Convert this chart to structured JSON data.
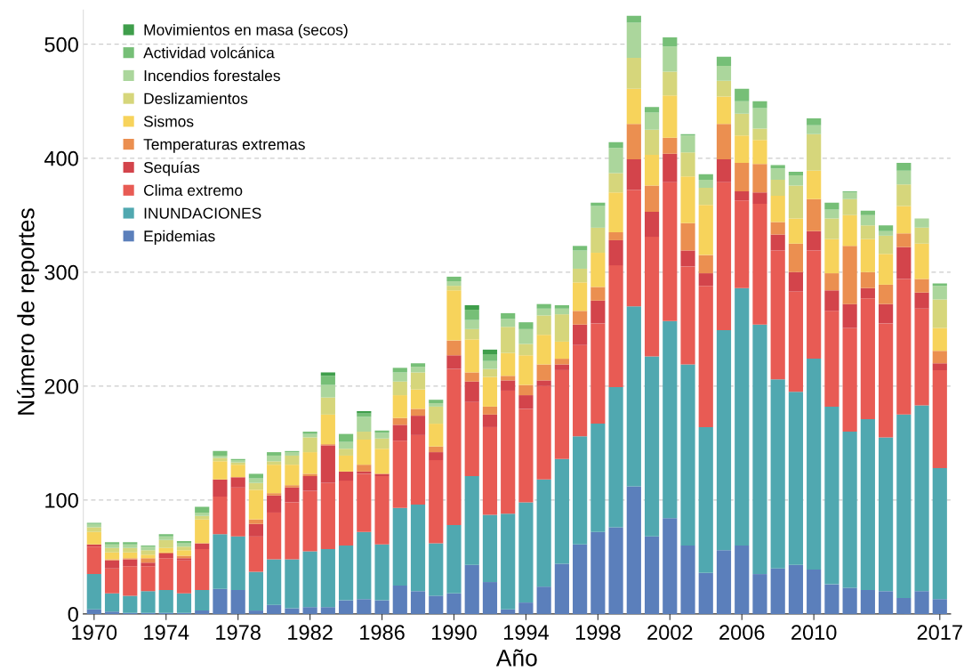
{
  "chart_data": {
    "type": "bar",
    "stacked": true,
    "xlabel": "Año",
    "ylabel": "Número de reportes",
    "categories": [
      "1970",
      null,
      null,
      null,
      "1974",
      null,
      null,
      null,
      "1978",
      null,
      null,
      null,
      "1982",
      null,
      null,
      null,
      "1986",
      null,
      null,
      null,
      "1990",
      null,
      null,
      null,
      "1994",
      null,
      null,
      null,
      "1998",
      null,
      null,
      null,
      "2002",
      null,
      null,
      null,
      "2006",
      null,
      null,
      null,
      "2010",
      null,
      null,
      null,
      null,
      null,
      null,
      "2017"
    ],
    "ylim": [
      0,
      530
    ],
    "yticks": [
      0,
      100,
      200,
      300,
      400,
      500
    ],
    "grid": "y",
    "legend": "top left",
    "series": [
      {
        "name": "Epidemias",
        "color": "#5b7fbb",
        "values": [
          4,
          2,
          1,
          1,
          1,
          1,
          3,
          22,
          21,
          3,
          8,
          5,
          6,
          6,
          12,
          13,
          12,
          25,
          20,
          16,
          18,
          43,
          28,
          4,
          10,
          24,
          44,
          61,
          72,
          76,
          112,
          68,
          84,
          60,
          36,
          56,
          60,
          35,
          40,
          43,
          39,
          26,
          23,
          21,
          20,
          14,
          20,
          13
        ]
      },
      {
        "name": "INUNDACIONES",
        "color": "#50a8b0",
        "values": [
          31,
          16,
          15,
          19,
          20,
          17,
          18,
          48,
          47,
          34,
          40,
          43,
          49,
          51,
          48,
          59,
          49,
          68,
          76,
          46,
          60,
          78,
          59,
          84,
          88,
          94,
          92,
          95,
          95,
          123,
          158,
          158,
          173,
          159,
          128,
          193,
          226,
          219,
          166,
          152,
          185,
          156,
          137,
          150,
          135,
          161,
          163,
          115
        ]
      },
      {
        "name": "Clima extremo",
        "color": "#e85b54",
        "values": [
          24,
          22,
          26,
          22,
          28,
          29,
          36,
          33,
          43,
          31,
          41,
          50,
          53,
          58,
          57,
          51,
          60,
          59,
          61,
          73,
          137,
          65,
          77,
          108,
          82,
          82,
          78,
          80,
          88,
          107,
          102,
          105,
          122,
          86,
          124,
          130,
          77,
          106,
          113,
          88,
          95,
          84,
          91,
          106,
          100,
          119,
          85,
          86
        ]
      },
      {
        "name": "Sequías",
        "color": "#d3444b",
        "values": [
          2,
          7,
          6,
          3,
          4,
          2,
          5,
          15,
          9,
          11,
          15,
          13,
          13,
          33,
          8,
          2,
          2,
          14,
          17,
          7,
          12,
          18,
          11,
          9,
          12,
          5,
          5,
          18,
          20,
          22,
          27,
          22,
          25,
          14,
          11,
          20,
          8,
          10,
          14,
          17,
          17,
          18,
          21,
          9,
          17,
          28,
          14,
          6
        ]
      },
      {
        "name": "Temperaturas extremas",
        "color": "#eb8f50",
        "values": [
          0,
          1,
          1,
          4,
          1,
          2,
          0,
          0,
          0,
          4,
          2,
          2,
          2,
          1,
          0,
          6,
          0,
          6,
          6,
          5,
          13,
          8,
          7,
          4,
          9,
          14,
          5,
          12,
          12,
          7,
          31,
          23,
          14,
          24,
          16,
          31,
          25,
          25,
          11,
          25,
          28,
          15,
          51,
          14,
          17,
          12,
          12,
          11
        ]
      },
      {
        "name": "Sismos",
        "color": "#f7d35b",
        "values": [
          11,
          6,
          5,
          3,
          4,
          5,
          21,
          16,
          11,
          26,
          25,
          18,
          19,
          26,
          14,
          22,
          22,
          20,
          17,
          20,
          44,
          29,
          26,
          20,
          26,
          26,
          15,
          25,
          30,
          35,
          31,
          27,
          37,
          41,
          44,
          24,
          24,
          21,
          23,
          22,
          25,
          30,
          27,
          29,
          27,
          24,
          31,
          20
        ]
      },
      {
        "name": "Deslizamientos",
        "color": "#d6d67b",
        "values": [
          4,
          4,
          4,
          4,
          7,
          3,
          3,
          3,
          2,
          6,
          3,
          8,
          13,
          15,
          6,
          7,
          9,
          12,
          15,
          15,
          4,
          9,
          7,
          23,
          10,
          17,
          24,
          12,
          22,
          17,
          27,
          22,
          21,
          21,
          15,
          14,
          19,
          10,
          14,
          29,
          32,
          18,
          14,
          12,
          16,
          19,
          14,
          25
        ]
      },
      {
        "name": "Incendios forestales",
        "color": "#abd69c",
        "values": [
          3,
          3,
          3,
          3,
          3,
          3,
          3,
          2,
          2,
          4,
          5,
          3,
          3,
          11,
          6,
          13,
          5,
          8,
          5,
          3,
          4,
          8,
          7,
          7,
          13,
          6,
          5,
          16,
          19,
          22,
          31,
          15,
          22,
          15,
          7,
          13,
          11,
          18,
          10,
          9,
          8,
          8,
          6,
          9,
          4,
          12,
          8,
          12
        ]
      },
      {
        "name": "Actividad volcánica",
        "color": "#76bf77",
        "values": [
          1,
          2,
          2,
          1,
          2,
          2,
          5,
          4,
          1,
          4,
          3,
          1,
          2,
          8,
          7,
          3,
          2,
          4,
          3,
          3,
          4,
          9,
          6,
          5,
          6,
          4,
          3,
          4,
          3,
          5,
          6,
          5,
          8,
          1,
          5,
          8,
          11,
          6,
          3,
          3,
          6,
          6,
          1,
          4,
          5,
          7,
          0,
          2
        ]
      },
      {
        "name": "Movimientos en masa (secos)",
        "color": "#3f9e4b",
        "values": [
          0,
          0,
          0,
          0,
          0,
          0,
          0,
          0,
          0,
          0,
          0,
          0,
          0,
          3,
          0,
          2,
          0,
          0,
          0,
          0,
          0,
          4,
          4,
          0,
          0,
          0,
          0,
          0,
          0,
          0,
          0,
          0,
          0,
          0,
          0,
          0,
          0,
          0,
          0,
          0,
          0,
          0,
          0,
          0,
          0,
          0,
          0,
          0
        ]
      }
    ]
  }
}
